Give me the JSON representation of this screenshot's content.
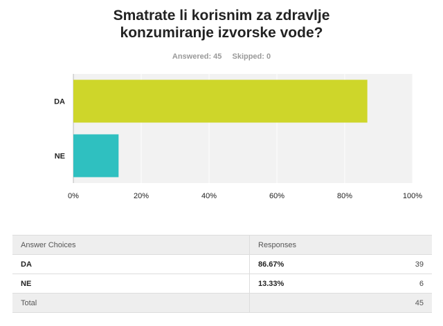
{
  "title_line1": "Smatrate li korisnim za zdravlje",
  "title_line2": "konzumiranje izvorske vode?",
  "answered": "Answered: 45",
  "skipped": "Skipped: 0",
  "colors": {
    "DA": "#ced62a",
    "NE": "#2fc0c0",
    "plot_bg": "#f2f2f2"
  },
  "chart_data": {
    "type": "bar",
    "orientation": "horizontal",
    "categories": [
      "DA",
      "NE"
    ],
    "values": [
      86.67,
      13.33
    ],
    "xlim": [
      0,
      100
    ],
    "xticks": [
      "0%",
      "20%",
      "40%",
      "60%",
      "80%",
      "100%"
    ],
    "grid": true
  },
  "table": {
    "headers": [
      "Answer Choices",
      "Responses",
      ""
    ],
    "rows": [
      {
        "choice": "DA",
        "percent": "86.67%",
        "count": "39"
      },
      {
        "choice": "NE",
        "percent": "13.33%",
        "count": "6"
      }
    ],
    "total_label": "Total",
    "total_value": "45"
  }
}
